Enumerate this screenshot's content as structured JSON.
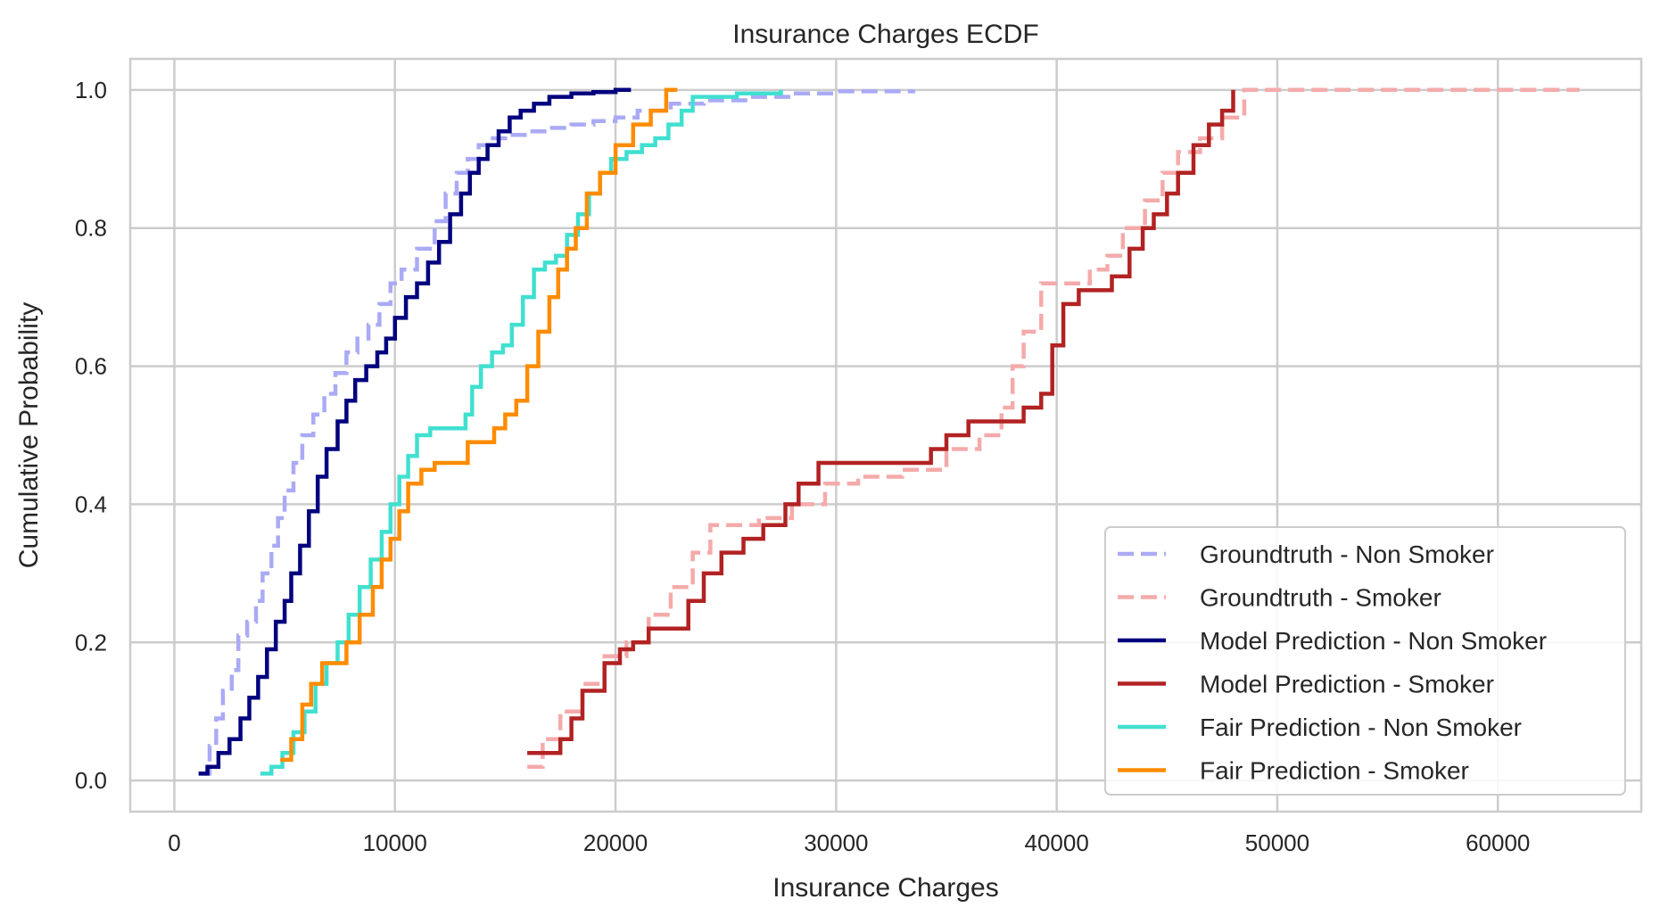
{
  "chart_data": {
    "type": "line",
    "title": "Insurance Charges ECDF",
    "xlabel": "Insurance Charges",
    "ylabel": "Cumulative Probability",
    "xlim": [
      -2000,
      66500
    ],
    "ylim": [
      -0.045,
      1.045
    ],
    "xticks": [
      0,
      10000,
      20000,
      30000,
      40000,
      50000,
      60000
    ],
    "yticks": [
      0.0,
      0.2,
      0.4,
      0.6,
      0.8,
      1.0
    ],
    "xtick_labels": [
      "0",
      "10000",
      "20000",
      "30000",
      "40000",
      "50000",
      "60000"
    ],
    "ytick_labels": [
      "0.0",
      "0.2",
      "0.4",
      "0.6",
      "0.8",
      "1.0"
    ],
    "grid": true,
    "legend_position": "lower-right",
    "series": [
      {
        "name": "Groundtruth - Non Smoker",
        "color": "#aaaaf5",
        "dash": "dashed",
        "x": [
          1100,
          1600,
          1900,
          2200,
          2600,
          2900,
          3300,
          3700,
          4000,
          4400,
          4700,
          5000,
          5400,
          5800,
          6300,
          6800,
          7300,
          7800,
          8300,
          8800,
          9300,
          9800,
          10300,
          11000,
          11800,
          12300,
          12800,
          13300,
          13800,
          14300,
          15000,
          16000,
          17000,
          18000,
          19000,
          20000,
          21000,
          22500,
          24000,
          26000,
          28000,
          30000,
          33500
        ],
        "y": [
          0.01,
          0.05,
          0.09,
          0.13,
          0.16,
          0.21,
          0.23,
          0.26,
          0.3,
          0.34,
          0.38,
          0.42,
          0.46,
          0.5,
          0.53,
          0.56,
          0.59,
          0.62,
          0.64,
          0.66,
          0.69,
          0.72,
          0.74,
          0.77,
          0.81,
          0.85,
          0.88,
          0.9,
          0.92,
          0.93,
          0.935,
          0.94,
          0.945,
          0.95,
          0.955,
          0.96,
          0.97,
          0.98,
          0.985,
          0.99,
          0.995,
          0.998,
          1.0
        ]
      },
      {
        "name": "Groundtruth - Smoker",
        "color": "#f5aaaa",
        "dash": "dashed",
        "x": [
          16000,
          16700,
          17500,
          18500,
          19500,
          20500,
          21500,
          22500,
          23500,
          24300,
          25000,
          26500,
          28000,
          29500,
          31000,
          33000,
          35000,
          36500,
          37500,
          38000,
          38500,
          39300,
          40500,
          41500,
          42300,
          43000,
          44000,
          44800,
          45500,
          46500,
          47500,
          48500,
          50000,
          56000,
          63700
        ],
        "y": [
          0.02,
          0.06,
          0.1,
          0.14,
          0.18,
          0.2,
          0.24,
          0.28,
          0.33,
          0.37,
          0.37,
          0.38,
          0.4,
          0.43,
          0.44,
          0.45,
          0.48,
          0.5,
          0.54,
          0.6,
          0.65,
          0.72,
          0.72,
          0.74,
          0.76,
          0.8,
          0.84,
          0.88,
          0.91,
          0.93,
          0.96,
          1.0,
          1.0,
          1.0,
          1.0
        ]
      },
      {
        "name": "Model Prediction - Non Smoker",
        "color": "#00007f",
        "dash": "solid",
        "x": [
          1100,
          1500,
          2000,
          2500,
          3000,
          3400,
          3800,
          4200,
          4600,
          5000,
          5300,
          5700,
          6100,
          6500,
          6900,
          7400,
          7800,
          8200,
          8700,
          9200,
          9600,
          10000,
          10500,
          11000,
          11500,
          12000,
          12500,
          13000,
          13400,
          13800,
          14200,
          14700,
          15200,
          15700,
          16300,
          17000,
          18000,
          19000,
          20000,
          20700
        ],
        "y": [
          0.01,
          0.02,
          0.04,
          0.06,
          0.09,
          0.12,
          0.15,
          0.19,
          0.23,
          0.26,
          0.3,
          0.34,
          0.39,
          0.44,
          0.48,
          0.52,
          0.55,
          0.58,
          0.6,
          0.62,
          0.64,
          0.67,
          0.7,
          0.72,
          0.75,
          0.78,
          0.82,
          0.85,
          0.88,
          0.9,
          0.92,
          0.94,
          0.96,
          0.97,
          0.98,
          0.99,
          0.995,
          0.997,
          1.0,
          1.0
        ]
      },
      {
        "name": "Model Prediction - Smoker",
        "color": "#b22222",
        "dash": "solid",
        "x": [
          16000,
          16800,
          17500,
          18000,
          18500,
          19500,
          20200,
          20800,
          21500,
          22300,
          23000,
          23300,
          24000,
          24800,
          25800,
          26700,
          27700,
          28300,
          29200,
          30500,
          31500,
          32500,
          33500,
          34300,
          35000,
          36000,
          37000,
          37800,
          38500,
          39300,
          39800,
          40300,
          41000,
          41800,
          42500,
          43300,
          43900,
          44400,
          45000,
          45500,
          46200,
          46900,
          47500,
          48000
        ],
        "y": [
          0.04,
          0.04,
          0.06,
          0.09,
          0.13,
          0.17,
          0.19,
          0.2,
          0.22,
          0.22,
          0.22,
          0.26,
          0.3,
          0.33,
          0.35,
          0.37,
          0.4,
          0.43,
          0.46,
          0.46,
          0.46,
          0.46,
          0.46,
          0.48,
          0.5,
          0.52,
          0.52,
          0.52,
          0.54,
          0.56,
          0.63,
          0.69,
          0.71,
          0.71,
          0.73,
          0.77,
          0.8,
          0.82,
          0.85,
          0.88,
          0.92,
          0.95,
          0.97,
          1.0
        ]
      },
      {
        "name": "Fair Prediction - Non Smoker",
        "color": "#40e0d0",
        "dash": "solid",
        "x": [
          3900,
          4400,
          4900,
          5400,
          5900,
          6400,
          6900,
          7400,
          7900,
          8400,
          8900,
          9400,
          9800,
          10200,
          10600,
          11000,
          11600,
          12200,
          12800,
          13200,
          13500,
          13900,
          14400,
          14900,
          15300,
          15800,
          16300,
          16800,
          17300,
          17800,
          18300,
          18800,
          19300,
          19800,
          20500,
          21200,
          21800,
          22400,
          23000,
          23500,
          24500,
          25500,
          27500
        ],
        "y": [
          0.01,
          0.02,
          0.04,
          0.07,
          0.1,
          0.14,
          0.17,
          0.2,
          0.24,
          0.28,
          0.32,
          0.36,
          0.4,
          0.44,
          0.47,
          0.5,
          0.51,
          0.51,
          0.51,
          0.53,
          0.57,
          0.6,
          0.62,
          0.63,
          0.66,
          0.7,
          0.74,
          0.75,
          0.76,
          0.79,
          0.82,
          0.85,
          0.88,
          0.9,
          0.91,
          0.92,
          0.93,
          0.95,
          0.97,
          0.99,
          0.99,
          0.995,
          1.0
        ]
      },
      {
        "name": "Fair Prediction - Smoker",
        "color": "#ff8c00",
        "dash": "solid",
        "x": [
          4800,
          5300,
          5800,
          6200,
          6700,
          7200,
          7800,
          8400,
          9000,
          9400,
          9800,
          10200,
          10600,
          11200,
          11800,
          12600,
          13300,
          13900,
          14500,
          15000,
          15500,
          16000,
          16500,
          17000,
          17400,
          17800,
          18200,
          18700,
          19300,
          20000,
          20800,
          21600,
          22300,
          22800
        ],
        "y": [
          0.03,
          0.06,
          0.11,
          0.14,
          0.17,
          0.17,
          0.2,
          0.24,
          0.28,
          0.32,
          0.35,
          0.39,
          0.43,
          0.45,
          0.46,
          0.46,
          0.49,
          0.49,
          0.51,
          0.53,
          0.55,
          0.6,
          0.65,
          0.7,
          0.74,
          0.77,
          0.8,
          0.85,
          0.88,
          0.92,
          0.95,
          0.97,
          1.0,
          1.0
        ]
      }
    ]
  }
}
